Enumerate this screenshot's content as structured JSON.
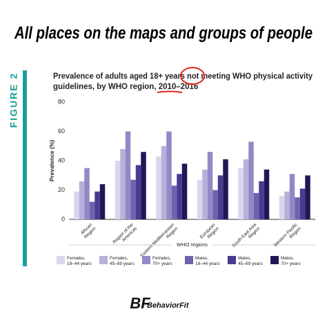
{
  "header": "All places on the maps and groups of people",
  "figure_label": "FIGURE 2",
  "brand_mark": "BF",
  "brand": "BehaviorFit",
  "chart_data": {
    "type": "bar",
    "title_lines": [
      "Prevalence of adults aged 18+ years not meeting WHO physical activity",
      "guidelines, by WHO region, 2010–2016"
    ],
    "y_label": "Prevalence (%)",
    "x_label": "WHO regions",
    "categories": [
      "African Region",
      "Region of the Americas",
      "Eastern Mediterranean Region",
      "European Region",
      "South-East Asia Region",
      "Western Pacific Region"
    ],
    "series": [
      {
        "name": "Females, 18–44 years",
        "color": "#d9d7ec",
        "values": [
          19,
          40,
          43,
          27,
          35,
          16
        ]
      },
      {
        "name": "Females, 45–69 years",
        "color": "#b5b1da",
        "values": [
          26,
          48,
          50,
          34,
          41,
          19
        ]
      },
      {
        "name": "Females, 70+ years",
        "color": "#9189c6",
        "values": [
          35,
          60,
          60,
          46,
          53,
          31
        ]
      },
      {
        "name": "Males, 18–44 years",
        "color": "#6e63ad",
        "values": [
          12,
          27,
          23,
          20,
          18,
          15
        ]
      },
      {
        "name": "Males, 45–69 years",
        "color": "#473b92",
        "values": [
          19,
          37,
          31,
          30,
          26,
          21
        ]
      },
      {
        "name": "Males, 70+ years",
        "color": "#201757",
        "values": [
          24,
          46,
          38,
          41,
          34,
          30
        ]
      }
    ],
    "ylim": [
      0,
      80
    ],
    "yticks": [
      0,
      20,
      40,
      60,
      80
    ],
    "grid": false
  }
}
